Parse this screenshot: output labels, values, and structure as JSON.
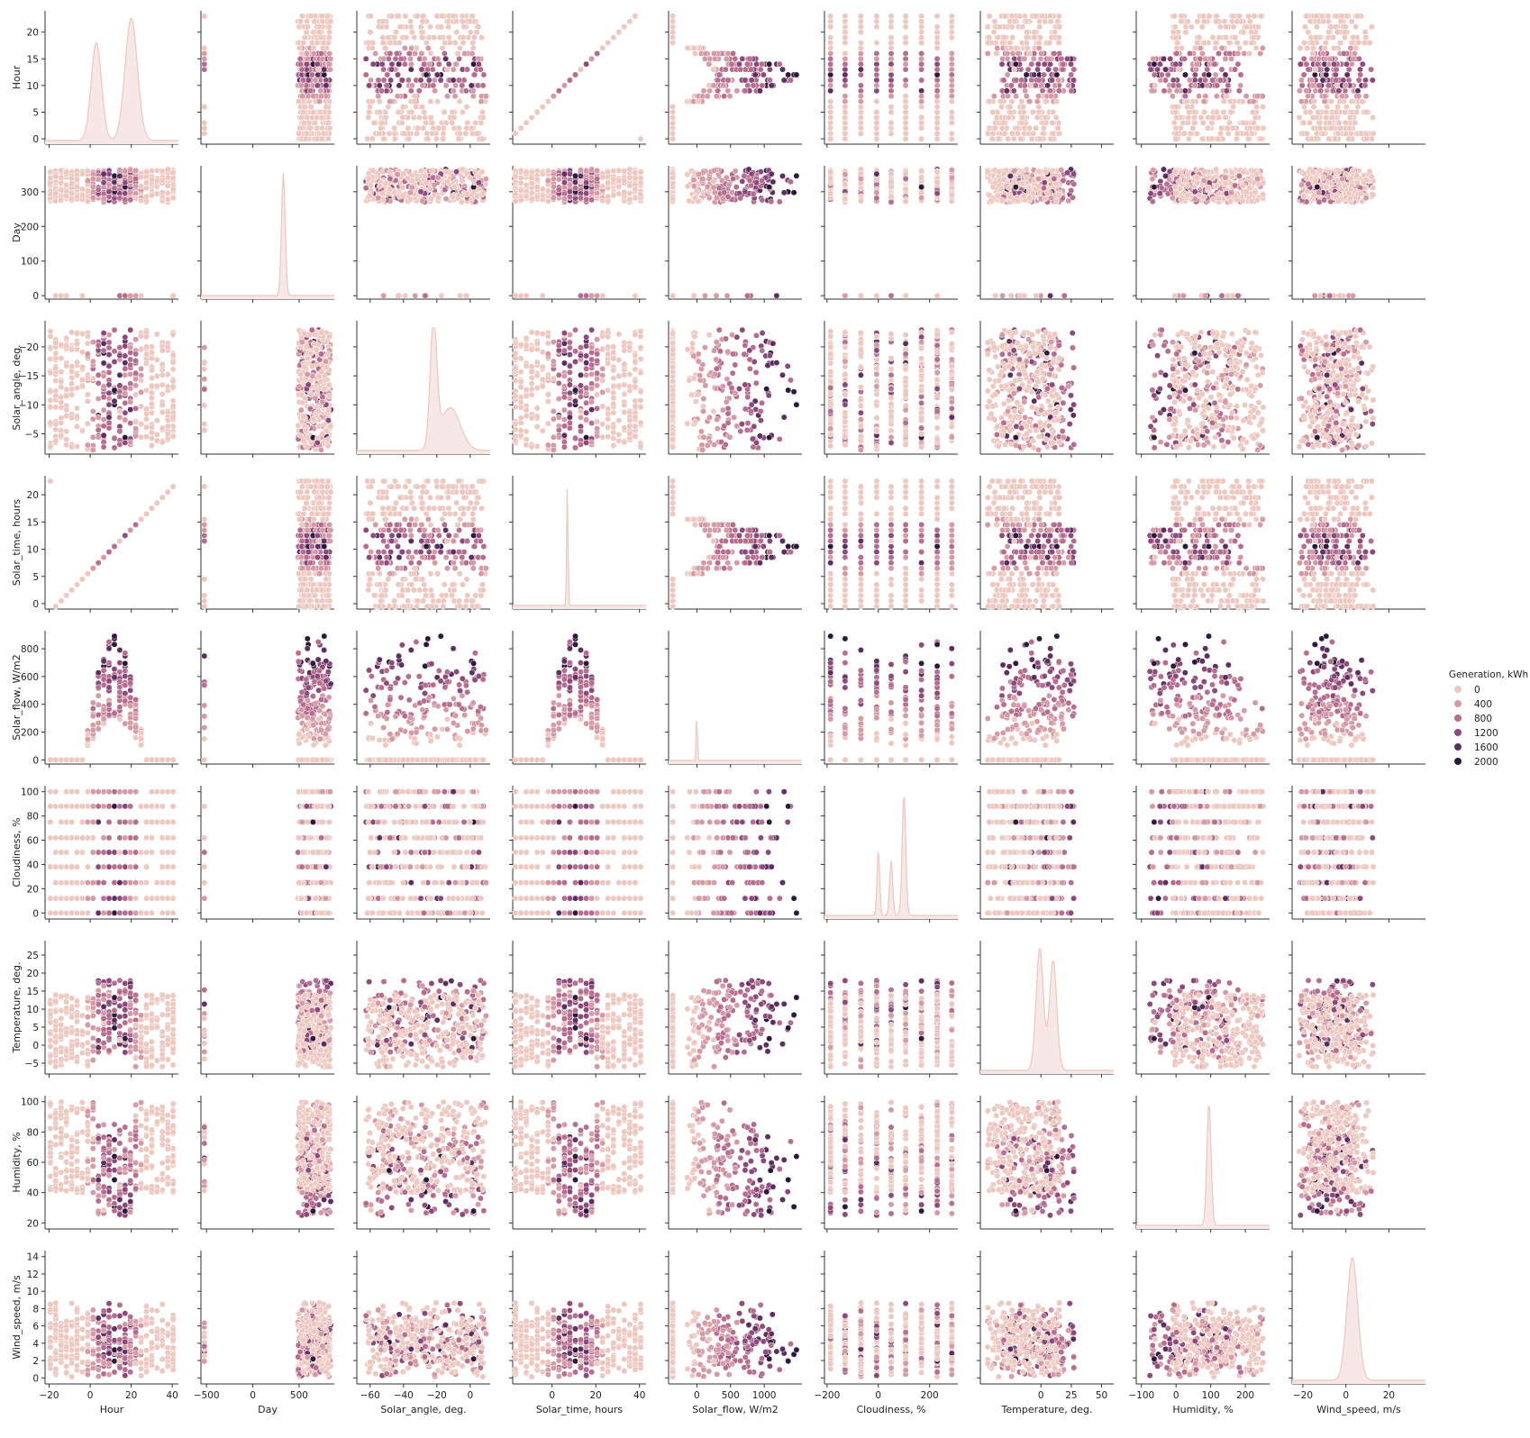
{
  "chart_data": {
    "type": "scatter",
    "subtype": "pairplot",
    "variables": [
      {
        "name": "Hour",
        "ticks": [
          0,
          5,
          10,
          15,
          20
        ],
        "range": [
          -1,
          24
        ],
        "xticks": [
          -20,
          0,
          20,
          40
        ],
        "xrange": [
          -22,
          43
        ]
      },
      {
        "name": "Day",
        "ticks": [
          0,
          100,
          200,
          300
        ],
        "range": [
          -10,
          375
        ],
        "xticks": [
          -500,
          0,
          500
        ],
        "xrange": [
          -560,
          880
        ]
      },
      {
        "name": "Solar_angle, deg.",
        "ticks": [
          -5,
          -10,
          -15,
          -20
        ],
        "range": [
          -24.5,
          -1.5
        ],
        "inverted": true,
        "xticks": [
          -60,
          -40,
          -20,
          0
        ],
        "xrange": [
          -68,
          12
        ]
      },
      {
        "name": "Solar_time, hours",
        "ticks": [
          0,
          5,
          10,
          15,
          20
        ],
        "range": [
          -1,
          23.5
        ],
        "xticks": [
          0,
          20,
          40
        ],
        "xrange": [
          -18,
          43
        ]
      },
      {
        "name": "Solar_flow, W/m2",
        "ticks": [
          0,
          200,
          400,
          600,
          800
        ],
        "range": [
          -30,
          930
        ],
        "xticks": [
          0,
          500,
          1000
        ],
        "xrange": [
          -420,
          1560
        ]
      },
      {
        "name": "Cloudiness, %",
        "ticks": [
          0,
          20,
          40,
          60,
          80,
          100
        ],
        "range": [
          -5,
          105
        ],
        "xticks": [
          -200,
          0,
          200
        ],
        "xrange": [
          -210,
          310
        ]
      },
      {
        "name": "Temperature, deg.",
        "ticks": [
          -5,
          0,
          5,
          10,
          15,
          20,
          25
        ],
        "range": [
          -8,
          29
        ],
        "xticks": [
          0,
          25,
          50
        ],
        "xrange": [
          -50,
          60
        ]
      },
      {
        "name": "Humidity, %",
        "ticks": [
          20,
          40,
          60,
          80,
          100
        ],
        "range": [
          16,
          104
        ],
        "xticks": [
          -100,
          0,
          100,
          200
        ],
        "xrange": [
          -115,
          270
        ]
      },
      {
        "name": "Wind_speed, m/s",
        "ticks": [
          0,
          2,
          4,
          6,
          8,
          10,
          12,
          14
        ],
        "range": [
          -0.7,
          14.7
        ],
        "xticks": [
          -20,
          0,
          20
        ],
        "xrange": [
          -25,
          37
        ]
      }
    ],
    "hue": {
      "name": "Generation, kWh",
      "legend": [
        {
          "label": "0",
          "color": "#ecc8c0"
        },
        {
          "label": "400",
          "color": "#d49aa6"
        },
        {
          "label": "800",
          "color": "#b66e8f"
        },
        {
          "label": "1200",
          "color": "#8c4a7c"
        },
        {
          "label": "1600",
          "color": "#5c2f60"
        },
        {
          "label": "2000",
          "color": "#2b1a3a"
        }
      ]
    },
    "diagonal": "kde",
    "legend_position": "right"
  }
}
